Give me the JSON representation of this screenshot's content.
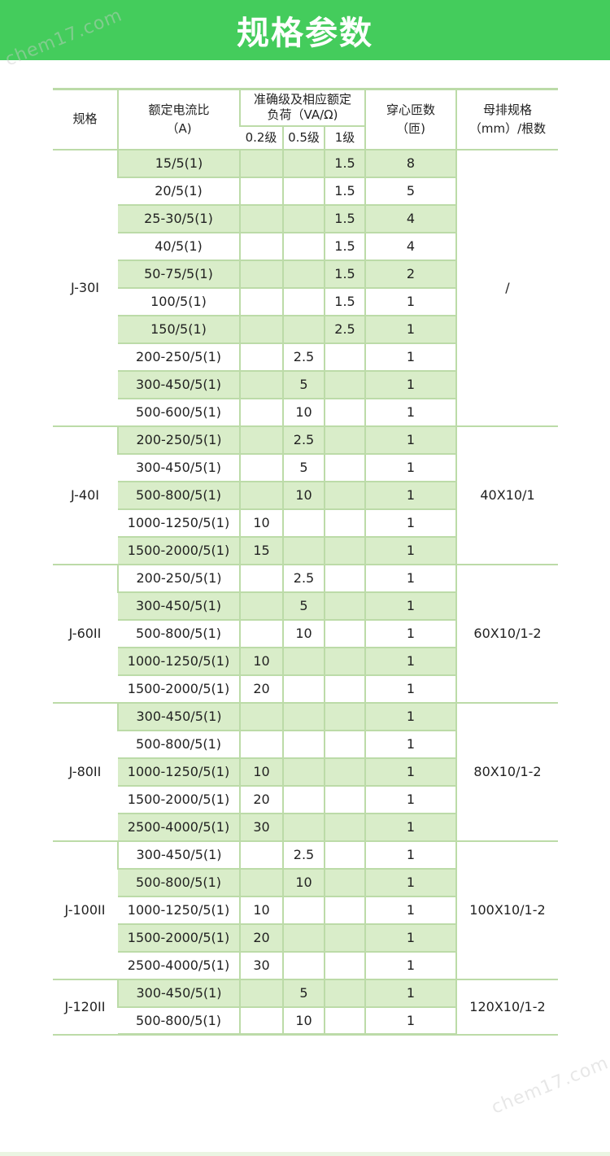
{
  "header": {
    "title": "规格参数",
    "bg": "#44cc5c"
  },
  "watermark": {
    "text": "chem17.com"
  },
  "table": {
    "headers": {
      "spec": "规格",
      "ratio_line1": "额定电流比",
      "ratio_line2": "（A)",
      "accuracy_line1": "准确级及相应额定",
      "accuracy_line2": "负荷（VA/Ω)",
      "grade_02": "0.2级",
      "grade_05": "0.5级",
      "grade_1": "1级",
      "turns_line1": "穿心匝数",
      "turns_line2": "（匝)",
      "busbar_line1": "母排规格",
      "busbar_line2": "（mm）/根数"
    },
    "groups": [
      {
        "model": "J-30I",
        "busbar": "/",
        "rows": [
          {
            "ratio": "15/5(1)",
            "g02": "",
            "g05": "",
            "g1": "1.5",
            "turns": "8",
            "shaded": true
          },
          {
            "ratio": "20/5(1)",
            "g02": "",
            "g05": "",
            "g1": "1.5",
            "turns": "5",
            "shaded": false
          },
          {
            "ratio": "25-30/5(1)",
            "g02": "",
            "g05": "",
            "g1": "1.5",
            "turns": "4",
            "shaded": true
          },
          {
            "ratio": "40/5(1)",
            "g02": "",
            "g05": "",
            "g1": "1.5",
            "turns": "4",
            "shaded": false
          },
          {
            "ratio": "50-75/5(1)",
            "g02": "",
            "g05": "",
            "g1": "1.5",
            "turns": "2",
            "shaded": true
          },
          {
            "ratio": "100/5(1)",
            "g02": "",
            "g05": "",
            "g1": "1.5",
            "turns": "1",
            "shaded": false
          },
          {
            "ratio": "150/5(1)",
            "g02": "",
            "g05": "",
            "g1": "2.5",
            "turns": "1",
            "shaded": true
          },
          {
            "ratio": "200-250/5(1)",
            "g02": "",
            "g05": "2.5",
            "g1": "",
            "turns": "1",
            "shaded": false
          },
          {
            "ratio": "300-450/5(1)",
            "g02": "",
            "g05": "5",
            "g1": "",
            "turns": "1",
            "shaded": true
          },
          {
            "ratio": "500-600/5(1)",
            "g02": "",
            "g05": "10",
            "g1": "",
            "turns": "1",
            "shaded": false
          }
        ]
      },
      {
        "model": "J-40I",
        "busbar": "40X10/1",
        "rows": [
          {
            "ratio": "200-250/5(1)",
            "g02": "",
            "g05": "2.5",
            "g1": "",
            "turns": "1",
            "shaded": true
          },
          {
            "ratio": "300-450/5(1)",
            "g02": "",
            "g05": "5",
            "g1": "",
            "turns": "1",
            "shaded": false
          },
          {
            "ratio": "500-800/5(1)",
            "g02": "",
            "g05": "10",
            "g1": "",
            "turns": "1",
            "shaded": true
          },
          {
            "ratio": "1000-1250/5(1)",
            "g02": "10",
            "g05": "",
            "g1": "",
            "turns": "1",
            "shaded": false
          },
          {
            "ratio": "1500-2000/5(1)",
            "g02": "15",
            "g05": "",
            "g1": "",
            "turns": "1",
            "shaded": true
          }
        ]
      },
      {
        "model": "J-60II",
        "busbar": "60X10/1-2",
        "rows": [
          {
            "ratio": "200-250/5(1)",
            "g02": "",
            "g05": "2.5",
            "g1": "",
            "turns": "1",
            "shaded": false
          },
          {
            "ratio": "300-450/5(1)",
            "g02": "",
            "g05": "5",
            "g1": "",
            "turns": "1",
            "shaded": true
          },
          {
            "ratio": "500-800/5(1)",
            "g02": "",
            "g05": "10",
            "g1": "",
            "turns": "1",
            "shaded": false
          },
          {
            "ratio": "1000-1250/5(1)",
            "g02": "10",
            "g05": "",
            "g1": "",
            "turns": "1",
            "shaded": true
          },
          {
            "ratio": "1500-2000/5(1)",
            "g02": "20",
            "g05": "",
            "g1": "",
            "turns": "1",
            "shaded": false
          }
        ]
      },
      {
        "model": "J-80II",
        "busbar": "80X10/1-2",
        "rows": [
          {
            "ratio": "300-450/5(1)",
            "g02": "",
            "g05": "",
            "g1": "",
            "turns": "1",
            "shaded": true
          },
          {
            "ratio": "500-800/5(1)",
            "g02": "",
            "g05": "",
            "g1": "",
            "turns": "1",
            "shaded": false
          },
          {
            "ratio": "1000-1250/5(1)",
            "g02": "10",
            "g05": "",
            "g1": "",
            "turns": "1",
            "shaded": true
          },
          {
            "ratio": "1500-2000/5(1)",
            "g02": "20",
            "g05": "",
            "g1": "",
            "turns": "1",
            "shaded": false
          },
          {
            "ratio": "2500-4000/5(1)",
            "g02": "30",
            "g05": "",
            "g1": "",
            "turns": "1",
            "shaded": true
          }
        ]
      },
      {
        "model": "J-100II",
        "busbar": "100X10/1-2",
        "rows": [
          {
            "ratio": "300-450/5(1)",
            "g02": "",
            "g05": "2.5",
            "g1": "",
            "turns": "1",
            "shaded": false
          },
          {
            "ratio": "500-800/5(1)",
            "g02": "",
            "g05": "10",
            "g1": "",
            "turns": "1",
            "shaded": true
          },
          {
            "ratio": "1000-1250/5(1)",
            "g02": "10",
            "g05": "",
            "g1": "",
            "turns": "1",
            "shaded": false
          },
          {
            "ratio": "1500-2000/5(1)",
            "g02": "20",
            "g05": "",
            "g1": "",
            "turns": "1",
            "shaded": true
          },
          {
            "ratio": "2500-4000/5(1)",
            "g02": "30",
            "g05": "",
            "g1": "",
            "turns": "1",
            "shaded": false
          }
        ]
      },
      {
        "model": "J-120II",
        "busbar": "120X10/1-2",
        "rows": [
          {
            "ratio": "300-450/5(1)",
            "g02": "",
            "g05": "5",
            "g1": "",
            "turns": "1",
            "shaded": true
          },
          {
            "ratio": "500-800/5(1)",
            "g02": "",
            "g05": "10",
            "g1": "",
            "turns": "1",
            "shaded": false
          }
        ]
      }
    ]
  }
}
